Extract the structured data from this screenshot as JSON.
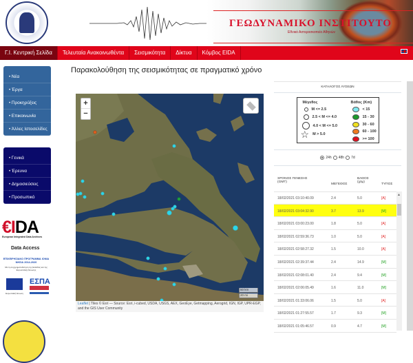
{
  "header": {
    "institute_name": "ΓΕΩΔΥΝΑΜΙΚΟ ΙΝΣΤΙΤΟΥΤΟ",
    "institute_sub": "Εθνικό Αστεροσκοπείο Αθηνών",
    "seal_text": "ΕΘΝΙΚΟ ΑΣΤΕΡΟΣΚΟΠΕΙΟ ΑΘΗΝΩΝ",
    "language_flag_icon": "uk-flag-icon"
  },
  "nav": [
    {
      "label": "Γ.Ι. Κεντρική Σελίδα",
      "active": true
    },
    {
      "label": "Τελευταία Ανακοινωθέντα"
    },
    {
      "label": "Σεισμικότητα"
    },
    {
      "label": "Δίκτυα"
    },
    {
      "label": "Κόμβος EIDA"
    }
  ],
  "sidebar": {
    "box1": [
      "Νέα",
      "Έργα",
      "Προκηρύξεις",
      "Επικοινωνία",
      "Άλλες Ιστοσελίδες"
    ],
    "box2": [
      "Γενικά",
      "Έρευνα",
      "Δημοσιεύσεις",
      "Προσωπικό"
    ],
    "eida_logo": "EIDA",
    "eida_sub": "European Integrated Data Archives",
    "data_access": "Data Access",
    "espa_title": "ΕΠΙΧΕΙΡΗΣΙΑΚΟ ΠΡΟΓΡΑΜΜΑ ΙΟΝΙΑ ΝΗΣΙΑ 2014-2020",
    "espa_text": "Με τη συγχρηματοδότηση της Ελλάδας και της Ευρωπαϊκής Ένωσης",
    "espa_logo": "ΕΣΠΑ 2014-2020",
    "eu_label": "Ευρωπαϊκή Ένωση"
  },
  "main": {
    "title": "Παρακολούθηση της σεισμικότητας σε πραγματικό χρόνο"
  },
  "map": {
    "zoom_in": "+",
    "zoom_out": "−",
    "layers_icon": "layers-icon",
    "scale_km": "50 km",
    "scale_mi": "20 mi",
    "attribution_link": "Leaflet",
    "attribution": " | Tiles © Esri — Source: Esri, i-cubed, USDA, USGS, AEX, GeoEye, Getmapping, Aerogrid, IGN, IGP, UPR-EGP, and the GIS User Community"
  },
  "panel": {
    "title": "ΚΑΤΑΛΟΓΟΣ ΛΥΣΕΩΝ",
    "legend": {
      "size_heading": "Μέγεθος",
      "sizes": [
        "M <= 2.5",
        "2.5 < M <= 4.0",
        "4.0 < M <= 5.0",
        "M > 5.0"
      ],
      "depth_heading": "Βάθος (Km)",
      "depths": [
        {
          "label": "< 15",
          "color": "#7fe8f0"
        },
        {
          "label": "15 - 30",
          "color": "#1a9a2a"
        },
        {
          "label": "30 - 60",
          "color": "#f0e020"
        },
        {
          "label": "60 - 100",
          "color": "#f07a20"
        },
        {
          "label": ">= 100",
          "color": "#e01020"
        }
      ]
    },
    "periods": [
      {
        "label": "24h",
        "selected": true
      },
      {
        "label": "48h"
      },
      {
        "label": "7d"
      }
    ],
    "columns": [
      "ΧΡΟΝΟΣ ΓΕΝΕΣΗΣ (GMT)",
      "ΜΕΓΕΘΟΣ",
      "ΒΑΘΟΣ (χλμ)",
      "ΤΥΠΟΣ"
    ],
    "rows": [
      {
        "time": "18/02/2021 03:10:40.09",
        "mag": "2.4",
        "depth": "5.0",
        "type": "[A]"
      },
      {
        "time": "18/02/2021 03:04:32.90",
        "mag": "3.7",
        "depth": "13.9",
        "type": "[M]",
        "highlight": true
      },
      {
        "time": "18/02/2021 03:00:23.00",
        "mag": "1.8",
        "depth": "5.0",
        "type": "[A]"
      },
      {
        "time": "18/02/2021 02:59:36.73",
        "mag": "1.0",
        "depth": "5.0",
        "type": "[A]"
      },
      {
        "time": "18/02/2021 02:58:27.32",
        "mag": "1.5",
        "depth": "10.0",
        "type": "[A]"
      },
      {
        "time": "18/02/2021 02:39:37.44",
        "mag": "2.4",
        "depth": "14.9",
        "type": "[M]"
      },
      {
        "time": "18/02/2021 02:08:01.40",
        "mag": "2.4",
        "depth": "9.4",
        "type": "[M]"
      },
      {
        "time": "18/02/2021 02:06:05.49",
        "mag": "1.6",
        "depth": "11.0",
        "type": "[M]"
      },
      {
        "time": "18/02/2021 01:33:06.06",
        "mag": "1.5",
        "depth": "5.0",
        "type": "[A]"
      },
      {
        "time": "18/02/2021 01:27:55.57",
        "mag": "1.7",
        "depth": "9.3",
        "type": "[M]"
      },
      {
        "time": "18/02/2021 01:05:46.57",
        "mag": "0.9",
        "depth": "4.7",
        "type": "[M]"
      }
    ]
  }
}
